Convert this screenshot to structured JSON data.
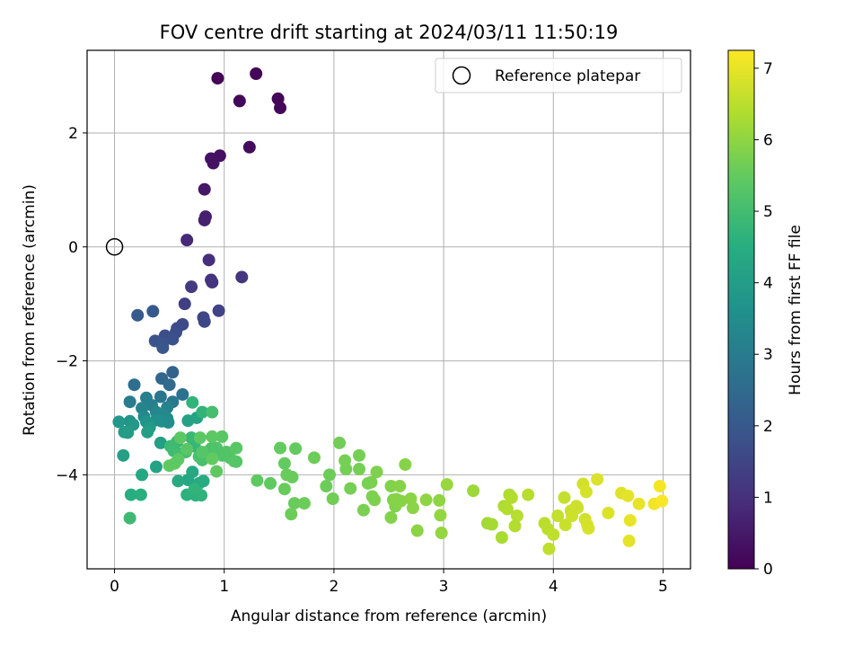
{
  "chart_data": {
    "type": "scatter",
    "title": "FOV centre drift starting at 2024/03/11 11:50:19",
    "xlabel": "Angular distance from reference (arcmin)",
    "ylabel": "Rotation from reference (arcmin)",
    "colorbar_label": "Hours from first FF file",
    "colormap": "viridis",
    "xlim": [
      -0.25,
      5.25
    ],
    "ylim": [
      -5.65,
      3.45
    ],
    "xticks": [
      0,
      1,
      2,
      3,
      4,
      5
    ],
    "yticks": [
      -4,
      -2,
      0,
      2
    ],
    "clim": [
      0,
      7.25
    ],
    "cbar_ticks": [
      0,
      1,
      2,
      3,
      4,
      5,
      6,
      7
    ],
    "grid": true,
    "legend": {
      "position": "top-right",
      "entries": [
        "Reference platepar"
      ]
    },
    "reference_point": {
      "x": 0,
      "y": 0
    },
    "points": [
      [
        0.94,
        2.96,
        0.05
      ],
      [
        1.29,
        3.04,
        0.07
      ],
      [
        1.49,
        2.6,
        0.1
      ],
      [
        1.51,
        2.44,
        0.12
      ],
      [
        1.14,
        2.56,
        0.14
      ],
      [
        1.23,
        1.75,
        0.2
      ],
      [
        0.96,
        1.6,
        0.26
      ],
      [
        0.88,
        1.55,
        0.3
      ],
      [
        0.9,
        1.47,
        0.34
      ],
      [
        0.82,
        1.01,
        0.45
      ],
      [
        0.83,
        0.53,
        0.62
      ],
      [
        0.82,
        0.47,
        0.66
      ],
      [
        0.66,
        0.12,
        0.8
      ],
      [
        0.86,
        -0.23,
        0.95
      ],
      [
        0.88,
        -0.58,
        1.05
      ],
      [
        0.89,
        -0.62,
        1.1
      ],
      [
        1.16,
        -0.53,
        1.15
      ],
      [
        0.7,
        -0.7,
        1.25
      ],
      [
        0.64,
        -1.0,
        1.35
      ],
      [
        0.95,
        -1.12,
        1.45
      ],
      [
        0.81,
        -1.24,
        1.5
      ],
      [
        0.82,
        -1.31,
        1.55
      ],
      [
        0.62,
        -1.36,
        1.6
      ],
      [
        0.57,
        -1.43,
        1.65
      ],
      [
        0.56,
        -1.5,
        1.7
      ],
      [
        0.46,
        -1.56,
        1.75
      ],
      [
        0.53,
        -1.62,
        1.8
      ],
      [
        0.37,
        -1.65,
        1.85
      ],
      [
        0.44,
        -1.7,
        1.9
      ],
      [
        0.44,
        -1.77,
        1.95
      ],
      [
        0.35,
        -1.13,
        2.0
      ],
      [
        0.21,
        -1.2,
        2.05
      ],
      [
        0.53,
        -2.2,
        2.3
      ],
      [
        0.43,
        -2.31,
        2.4
      ],
      [
        0.5,
        -2.42,
        2.5
      ],
      [
        0.18,
        -2.42,
        2.6
      ],
      [
        0.62,
        -2.59,
        2.7
      ],
      [
        0.42,
        -2.63,
        2.8
      ],
      [
        0.53,
        -2.72,
        2.9
      ],
      [
        0.14,
        -2.72,
        3.0
      ],
      [
        0.29,
        -2.65,
        3.1
      ],
      [
        0.34,
        -2.78,
        3.15
      ],
      [
        0.48,
        -2.82,
        3.2
      ],
      [
        0.25,
        -2.83,
        3.25
      ],
      [
        0.38,
        -2.9,
        3.3
      ],
      [
        0.44,
        -2.94,
        3.35
      ],
      [
        0.27,
        -2.98,
        3.4
      ],
      [
        0.48,
        -3.01,
        3.45
      ],
      [
        0.49,
        -3.08,
        3.5
      ],
      [
        0.43,
        -3.06,
        3.55
      ],
      [
        0.38,
        -3.04,
        3.6
      ],
      [
        0.29,
        -3.07,
        3.65
      ],
      [
        0.31,
        -3.1,
        3.7
      ],
      [
        0.14,
        -3.06,
        3.75
      ],
      [
        0.04,
        -3.07,
        3.8
      ],
      [
        0.17,
        -3.12,
        3.85
      ],
      [
        0.32,
        -3.17,
        3.9
      ],
      [
        0.09,
        -3.25,
        3.95
      ],
      [
        0.12,
        -3.26,
        4.0
      ],
      [
        0.3,
        -3.25,
        4.05
      ],
      [
        0.42,
        -3.44,
        4.05
      ],
      [
        0.08,
        -3.66,
        4.1
      ],
      [
        0.38,
        -3.86,
        4.15
      ],
      [
        0.67,
        -3.05,
        4.15
      ],
      [
        0.75,
        -3.0,
        4.2
      ],
      [
        0.25,
        -4.0,
        4.3
      ],
      [
        0.67,
        -4.09,
        4.3
      ],
      [
        0.71,
        -3.95,
        4.35
      ],
      [
        0.58,
        -4.11,
        4.4
      ],
      [
        0.77,
        -4.15,
        4.45
      ],
      [
        0.81,
        -4.11,
        4.45
      ],
      [
        0.15,
        -4.35,
        4.5
      ],
      [
        0.24,
        -4.35,
        4.55
      ],
      [
        0.66,
        -4.35,
        4.6
      ],
      [
        0.74,
        -4.36,
        4.6
      ],
      [
        0.79,
        -4.36,
        4.65
      ],
      [
        0.73,
        -4.25,
        4.7
      ],
      [
        0.14,
        -4.76,
        4.9
      ],
      [
        0.8,
        -2.9,
        4.7
      ],
      [
        0.71,
        -2.73,
        4.7
      ],
      [
        0.89,
        -2.9,
        5.05
      ],
      [
        0.73,
        -3.5,
        4.8
      ],
      [
        0.7,
        -3.35,
        4.85
      ],
      [
        0.57,
        -3.42,
        4.85
      ],
      [
        0.51,
        -3.5,
        4.9
      ],
      [
        0.54,
        -3.58,
        4.95
      ],
      [
        0.6,
        -3.63,
        5.0
      ],
      [
        0.65,
        -3.6,
        5.05
      ],
      [
        0.77,
        -3.68,
        5.1
      ],
      [
        0.8,
        -3.74,
        5.1
      ],
      [
        0.86,
        -3.61,
        5.1
      ],
      [
        0.88,
        -3.54,
        5.15
      ],
      [
        0.93,
        -3.53,
        5.2
      ],
      [
        0.98,
        -3.66,
        5.2
      ],
      [
        1.02,
        -3.6,
        5.25
      ],
      [
        1.05,
        -3.7,
        5.25
      ],
      [
        1.09,
        -3.76,
        5.3
      ],
      [
        1.11,
        -3.77,
        5.3
      ],
      [
        1.11,
        -3.53,
        5.35
      ],
      [
        0.98,
        -3.33,
        5.35
      ],
      [
        0.89,
        -3.33,
        5.4
      ],
      [
        0.78,
        -3.35,
        5.4
      ],
      [
        0.6,
        -3.35,
        5.4
      ],
      [
        0.55,
        -3.8,
        5.45
      ],
      [
        0.5,
        -3.84,
        5.45
      ],
      [
        0.93,
        -3.94,
        5.45
      ],
      [
        0.89,
        -3.72,
        5.5
      ],
      [
        0.58,
        -3.73,
        5.4
      ],
      [
        0.8,
        -3.6,
        5.3
      ],
      [
        0.66,
        -3.55,
        5.35
      ],
      [
        1.3,
        -4.1,
        5.45
      ],
      [
        1.42,
        -4.15,
        5.45
      ],
      [
        1.51,
        -3.53,
        5.5
      ],
      [
        1.65,
        -3.54,
        5.5
      ],
      [
        1.55,
        -3.8,
        5.5
      ],
      [
        1.57,
        -4.0,
        5.55
      ],
      [
        1.62,
        -4.04,
        5.55
      ],
      [
        1.55,
        -4.25,
        5.55
      ],
      [
        1.64,
        -4.5,
        5.55
      ],
      [
        1.61,
        -4.69,
        5.6
      ],
      [
        1.73,
        -4.5,
        5.6
      ],
      [
        1.82,
        -3.7,
        5.6
      ],
      [
        1.96,
        -4.0,
        5.6
      ],
      [
        1.93,
        -4.2,
        5.6
      ],
      [
        1.99,
        -4.42,
        5.65
      ],
      [
        2.05,
        -3.44,
        5.65
      ],
      [
        2.1,
        -3.75,
        5.7
      ],
      [
        2.11,
        -3.9,
        5.7
      ],
      [
        2.15,
        -4.24,
        5.7
      ],
      [
        2.23,
        -3.66,
        5.7
      ],
      [
        2.23,
        -3.9,
        5.7
      ],
      [
        2.27,
        -4.62,
        5.75
      ],
      [
        2.31,
        -4.15,
        5.75
      ],
      [
        2.34,
        -4.13,
        5.75
      ],
      [
        2.35,
        -4.38,
        5.8
      ],
      [
        2.37,
        -4.44,
        5.8
      ],
      [
        2.39,
        -3.95,
        5.8
      ],
      [
        2.52,
        -4.75,
        5.85
      ],
      [
        2.52,
        -4.2,
        5.85
      ],
      [
        2.54,
        -4.44,
        5.85
      ],
      [
        2.56,
        -4.55,
        5.85
      ],
      [
        2.57,
        -4.43,
        5.9
      ],
      [
        2.6,
        -4.2,
        5.9
      ],
      [
        2.61,
        -4.46,
        5.9
      ],
      [
        2.65,
        -3.82,
        5.9
      ],
      [
        2.7,
        -4.42,
        5.95
      ],
      [
        2.72,
        -4.58,
        5.95
      ],
      [
        2.76,
        -4.98,
        5.95
      ],
      [
        2.84,
        -4.44,
        6.0
      ],
      [
        2.96,
        -4.45,
        6.0
      ],
      [
        2.97,
        -4.71,
        6.05
      ],
      [
        2.98,
        -5.02,
        6.05
      ],
      [
        3.03,
        -4.17,
        6.1
      ],
      [
        3.27,
        -4.28,
        6.15
      ],
      [
        3.4,
        -4.85,
        6.2
      ],
      [
        3.44,
        -4.87,
        6.25
      ],
      [
        3.53,
        -5.1,
        6.3
      ],
      [
        3.55,
        -4.55,
        6.35
      ],
      [
        3.6,
        -4.35,
        6.35
      ],
      [
        3.58,
        -4.6,
        6.4
      ],
      [
        3.62,
        -4.4,
        6.4
      ],
      [
        3.67,
        -4.72,
        6.45
      ],
      [
        3.77,
        -4.35,
        6.45
      ],
      [
        3.92,
        -4.85,
        6.5
      ],
      [
        3.95,
        -4.95,
        6.5
      ],
      [
        3.96,
        -5.3,
        6.55
      ],
      [
        4.0,
        -5.05,
        6.55
      ],
      [
        4.04,
        -4.72,
        6.6
      ],
      [
        4.1,
        -4.4,
        6.6
      ],
      [
        4.11,
        -4.88,
        6.65
      ],
      [
        4.16,
        -4.63,
        6.65
      ],
      [
        4.17,
        -4.72,
        6.7
      ],
      [
        4.21,
        -4.55,
        6.7
      ],
      [
        4.22,
        -4.58,
        6.7
      ],
      [
        4.27,
        -4.16,
        6.75
      ],
      [
        4.29,
        -4.78,
        6.75
      ],
      [
        4.31,
        -4.88,
        6.8
      ],
      [
        4.32,
        -4.94,
        6.8
      ],
      [
        4.4,
        -4.08,
        6.85
      ],
      [
        4.5,
        -4.67,
        6.85
      ],
      [
        4.62,
        -4.32,
        6.9
      ],
      [
        4.68,
        -4.37,
        6.95
      ],
      [
        4.69,
        -5.16,
        6.95
      ],
      [
        4.78,
        -4.51,
        7.0
      ],
      [
        4.92,
        -4.51,
        7.1
      ],
      [
        4.97,
        -4.2,
        7.15
      ],
      [
        4.99,
        -4.46,
        7.2
      ],
      [
        4.7,
        -4.8,
        7.0
      ],
      [
        4.3,
        -4.3,
        6.8
      ],
      [
        3.65,
        -4.9,
        6.4
      ]
    ]
  }
}
